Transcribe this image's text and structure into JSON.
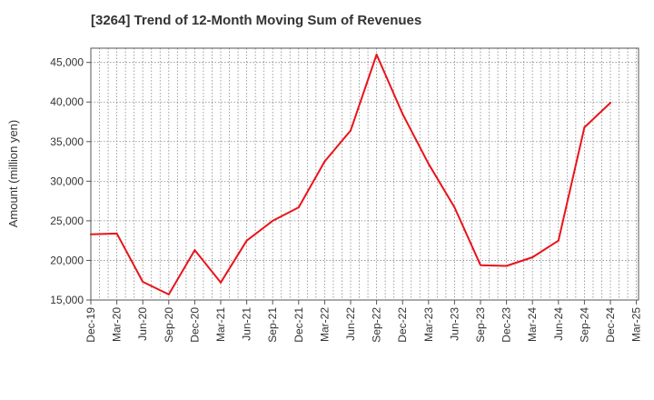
{
  "chart_data": {
    "type": "line",
    "title": "[3264]  Trend of 12-Month Moving Sum of Revenues",
    "xlabel": "",
    "ylabel": "Amount (million yen)",
    "ylim": [
      15000,
      46800
    ],
    "yticks": [
      15000,
      20000,
      25000,
      30000,
      35000,
      40000,
      45000
    ],
    "ytick_labels": [
      "15,000",
      "20,000",
      "25,000",
      "30,000",
      "35,000",
      "40,000",
      "45,000"
    ],
    "x_tick_labels": [
      "Dec-19",
      "Mar-20",
      "Jun-20",
      "Sep-20",
      "Dec-20",
      "Mar-21",
      "Jun-21",
      "Sep-21",
      "Dec-21",
      "Mar-22",
      "Jun-22",
      "Sep-22",
      "Dec-22",
      "Mar-23",
      "Jun-23",
      "Sep-23",
      "Dec-23",
      "Mar-24",
      "Jun-24",
      "Sep-24",
      "Dec-24",
      "Mar-25"
    ],
    "grid": true,
    "series": [
      {
        "color": "#e8141b",
        "x": [
          "Dec-19",
          "Mar-20",
          "Jun-20",
          "Sep-20",
          "Dec-20",
          "Mar-21",
          "Jun-21",
          "Sep-21",
          "Dec-21",
          "Mar-22",
          "Jun-22",
          "Sep-22",
          "Dec-22",
          "Mar-23",
          "Jun-23",
          "Sep-23",
          "Dec-23",
          "Mar-24",
          "Jun-24",
          "Sep-24",
          "Dec-24"
        ],
        "values": [
          23300,
          23400,
          17300,
          15700,
          21300,
          17200,
          22500,
          25000,
          26700,
          32500,
          36400,
          46000,
          38500,
          32200,
          26700,
          19400,
          19300,
          20400,
          22500,
          36800,
          39900
        ]
      }
    ]
  }
}
